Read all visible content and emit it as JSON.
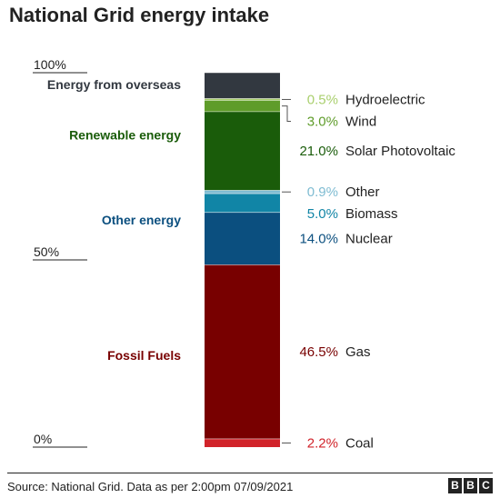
{
  "title": "National Grid energy intake",
  "source": "Source: National Grid. Data as per 2:00pm 07/09/2021",
  "logo": [
    "B",
    "B",
    "C"
  ],
  "chart_data": {
    "type": "bar",
    "title": "National Grid energy intake",
    "stacked": true,
    "ylim": [
      0,
      100
    ],
    "y_ticks": [
      {
        "value": 100,
        "label": "100%"
      },
      {
        "value": 50,
        "label": "50%"
      },
      {
        "value": 0,
        "label": "0%"
      }
    ],
    "segments": [
      {
        "name": "Coal",
        "value": 2.2,
        "label": "2.2%",
        "color": "#d1232a",
        "group": "Fossil Fuels",
        "text_color": "#d1232a"
      },
      {
        "name": "Gas",
        "value": 46.5,
        "label": "46.5%",
        "color": "#780000",
        "group": "Fossil Fuels",
        "text_color": "#780000"
      },
      {
        "name": "Nuclear",
        "value": 14.0,
        "label": "14.0%",
        "color": "#0b4f7f",
        "group": "Other energy",
        "text_color": "#0b4f7f"
      },
      {
        "name": "Biomass",
        "value": 5.0,
        "label": "5.0%",
        "color": "#1185a6",
        "group": "Other energy",
        "text_color": "#1185a6"
      },
      {
        "name": "Other",
        "value": 0.9,
        "label": "0.9%",
        "color": "#7fbcd2",
        "group": "Other energy",
        "text_color": "#7fbcd2"
      },
      {
        "name": "Solar Photovoltaic",
        "value": 21.0,
        "label": "21.0%",
        "color": "#1a5c0a",
        "group": "Renewable energy",
        "text_color": "#1a5c0a"
      },
      {
        "name": "Wind",
        "value": 3.0,
        "label": "3.0%",
        "color": "#5f9c2a",
        "group": "Renewable energy",
        "text_color": "#5f9c2a"
      },
      {
        "name": "Hydroelectric",
        "value": 0.5,
        "label": "0.5%",
        "color": "#a9cf6d",
        "group": "Renewable energy",
        "text_color": "#a9cf6d"
      },
      {
        "name": "Energy from overseas",
        "value": 6.9,
        "label": "",
        "color": "#323840",
        "group": "Energy from overseas",
        "text_color": "#323840"
      }
    ],
    "groups": [
      {
        "name": "Energy from overseas",
        "color": "#323840"
      },
      {
        "name": "Renewable energy",
        "color": "#1a5c0a"
      },
      {
        "name": "Other energy",
        "color": "#0b4f7f"
      },
      {
        "name": "Fossil Fuels",
        "color": "#780000"
      }
    ]
  }
}
